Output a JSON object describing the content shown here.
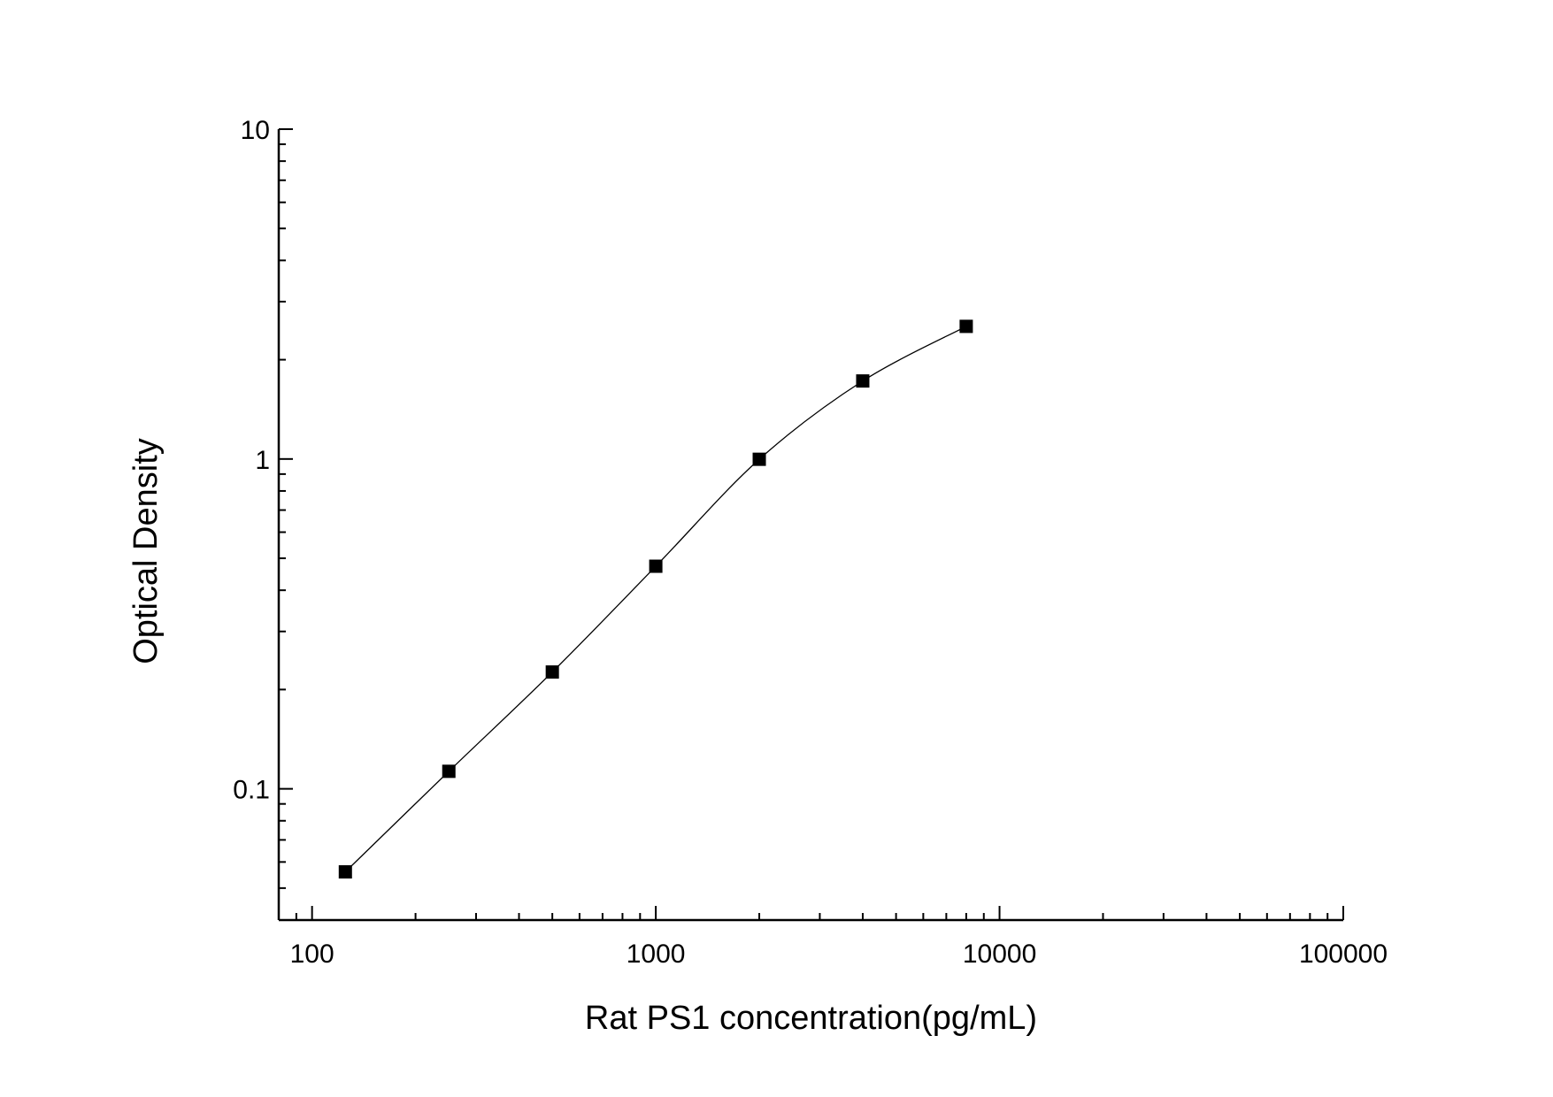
{
  "chart_data": {
    "type": "scatter",
    "xlabel": "Rat PS1 concentration(pg/mL)",
    "ylabel": "Optical Density",
    "x_scale": "log",
    "y_scale": "log",
    "xlim": [
      80,
      100000
    ],
    "ylim": [
      0.04,
      10
    ],
    "x_ticks": [
      {
        "value": 100,
        "label": "100"
      },
      {
        "value": 1000,
        "label": "1000"
      },
      {
        "value": 10000,
        "label": "10000"
      },
      {
        "value": 100000,
        "label": "100000"
      }
    ],
    "y_ticks": [
      {
        "value": 0.1,
        "label": "0.1"
      },
      {
        "value": 1,
        "label": "1"
      },
      {
        "value": 10,
        "label": "10"
      }
    ],
    "grid": false,
    "legend": "none",
    "marker_color": "#000000",
    "line_color": "#000000",
    "series": [
      {
        "x": [
          125,
          250,
          500,
          1000,
          2000,
          4000,
          8000
        ],
        "y": [
          0.056,
          0.113,
          0.226,
          0.473,
          0.998,
          1.724,
          2.524
        ]
      }
    ]
  }
}
